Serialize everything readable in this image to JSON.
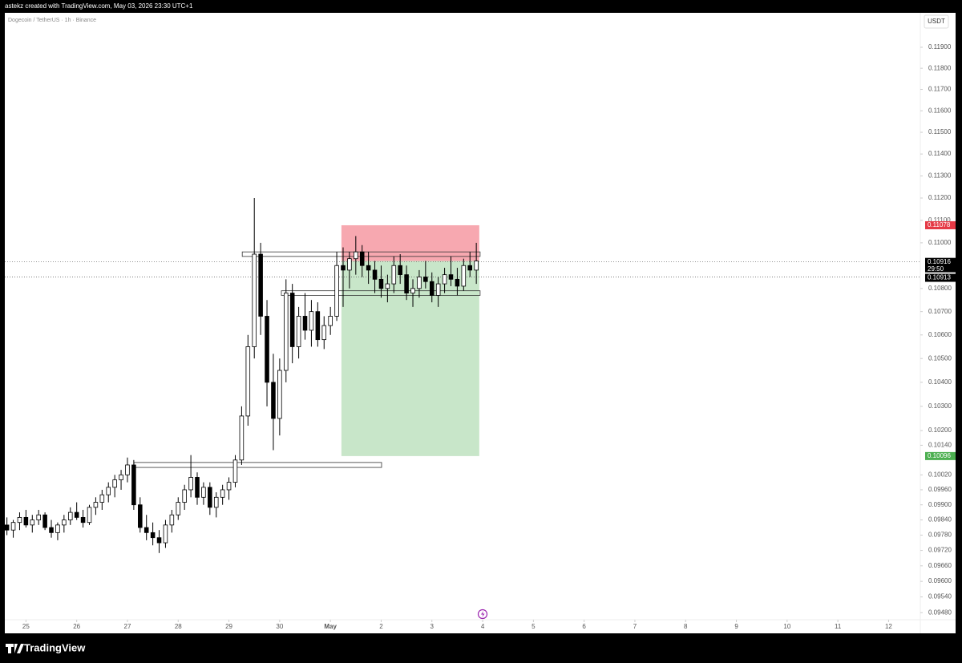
{
  "chart_data": {
    "type": "candlestick",
    "header": "astekz created with TradingView.com, May 03, 2026 23:30 UTC+1",
    "title": "Dogecoin / TetherUS · 1h · Binance",
    "currency": "USDT",
    "brand": "TradingView",
    "log_scale": true,
    "xlim": [
      -10,
      423
    ],
    "ylim": [
      0.09453,
      0.12066
    ],
    "xticks": [
      {
        "value": 0,
        "label": "25"
      },
      {
        "value": 24,
        "label": "26"
      },
      {
        "value": 48,
        "label": "27"
      },
      {
        "value": 72,
        "label": "28"
      },
      {
        "value": 96,
        "label": "29"
      },
      {
        "value": 120,
        "label": "30"
      },
      {
        "value": 144,
        "label": "May"
      },
      {
        "value": 168,
        "label": "2"
      },
      {
        "value": 192,
        "label": "3"
      },
      {
        "value": 216,
        "label": "4"
      },
      {
        "value": 240,
        "label": "5"
      },
      {
        "value": 264,
        "label": "6"
      },
      {
        "value": 288,
        "label": "7"
      },
      {
        "value": 312,
        "label": "8"
      },
      {
        "value": 336,
        "label": "9"
      },
      {
        "value": 360,
        "label": "10"
      },
      {
        "value": 384,
        "label": "11"
      },
      {
        "value": 408,
        "label": "12"
      }
    ],
    "yticks": [
      {
        "value": 0.119,
        "label": "0.11900"
      },
      {
        "value": 0.118,
        "label": "0.11800"
      },
      {
        "value": 0.117,
        "label": "0.11700"
      },
      {
        "value": 0.116,
        "label": "0.11600"
      },
      {
        "value": 0.115,
        "label": "0.11500"
      },
      {
        "value": 0.114,
        "label": "0.11400"
      },
      {
        "value": 0.113,
        "label": "0.11300"
      },
      {
        "value": 0.112,
        "label": "0.11200"
      },
      {
        "value": 0.111,
        "label": "0.11100"
      },
      {
        "value": 0.11,
        "label": "0.11000"
      },
      {
        "value": 0.108,
        "label": "0.10800"
      },
      {
        "value": 0.107,
        "label": "0.10700"
      },
      {
        "value": 0.106,
        "label": "0.10600"
      },
      {
        "value": 0.105,
        "label": "0.10500"
      },
      {
        "value": 0.104,
        "label": "0.10400"
      },
      {
        "value": 0.103,
        "label": "0.10300"
      },
      {
        "value": 0.102,
        "label": "0.10200"
      },
      {
        "value": 0.1014,
        "label": "0.10140"
      },
      {
        "value": 0.1002,
        "label": "0.10020"
      },
      {
        "value": 0.0996,
        "label": "0.09960"
      },
      {
        "value": 0.099,
        "label": "0.09900"
      },
      {
        "value": 0.0984,
        "label": "0.09840"
      },
      {
        "value": 0.0978,
        "label": "0.09780"
      },
      {
        "value": 0.0972,
        "label": "0.09720"
      },
      {
        "value": 0.0966,
        "label": "0.09660"
      },
      {
        "value": 0.096,
        "label": "0.09600"
      },
      {
        "value": 0.0954,
        "label": "0.09540"
      },
      {
        "value": 0.0948,
        "label": "0.09480"
      }
    ],
    "candles": [
      [
        -9,
        0.0982,
        0.0985,
        0.0978,
        0.098
      ],
      [
        -6,
        0.098,
        0.0984,
        0.0977,
        0.0983
      ],
      [
        -3,
        0.0983,
        0.0987,
        0.098,
        0.0985
      ],
      [
        0,
        0.0985,
        0.0988,
        0.0981,
        0.0982
      ],
      [
        3,
        0.0982,
        0.0986,
        0.0979,
        0.0984
      ],
      [
        6,
        0.0984,
        0.0988,
        0.0982,
        0.0986
      ],
      [
        9,
        0.0986,
        0.0987,
        0.098,
        0.0981
      ],
      [
        12,
        0.0981,
        0.0984,
        0.0977,
        0.0979
      ],
      [
        15,
        0.0979,
        0.0983,
        0.0976,
        0.0982
      ],
      [
        18,
        0.0982,
        0.0986,
        0.0979,
        0.0984
      ],
      [
        21,
        0.0984,
        0.0989,
        0.0982,
        0.0987
      ],
      [
        24,
        0.0987,
        0.0991,
        0.0984,
        0.0985
      ],
      [
        27,
        0.0985,
        0.0988,
        0.0981,
        0.0983
      ],
      [
        30,
        0.0983,
        0.099,
        0.0982,
        0.0989
      ],
      [
        33,
        0.0989,
        0.0993,
        0.0986,
        0.0991
      ],
      [
        36,
        0.0991,
        0.0996,
        0.0988,
        0.0994
      ],
      [
        39,
        0.0994,
        0.0999,
        0.0991,
        0.0997
      ],
      [
        42,
        0.0997,
        0.1002,
        0.0993,
        0.1
      ],
      [
        45,
        0.1,
        0.1004,
        0.0996,
        0.1002
      ],
      [
        48,
        0.1002,
        0.1009,
        0.0999,
        0.1006
      ],
      [
        51,
        0.1006,
        0.1008,
        0.0988,
        0.099
      ],
      [
        54,
        0.099,
        0.0993,
        0.0979,
        0.0981
      ],
      [
        57,
        0.0981,
        0.0986,
        0.0976,
        0.0979
      ],
      [
        60,
        0.0979,
        0.0983,
        0.0974,
        0.0977
      ],
      [
        63,
        0.0977,
        0.098,
        0.0971,
        0.0975
      ],
      [
        66,
        0.0975,
        0.0984,
        0.0973,
        0.0982
      ],
      [
        69,
        0.0982,
        0.0988,
        0.0979,
        0.0986
      ],
      [
        72,
        0.0986,
        0.0993,
        0.0984,
        0.0991
      ],
      [
        75,
        0.0991,
        0.0998,
        0.0988,
        0.0996
      ],
      [
        78,
        0.0996,
        0.101,
        0.0993,
        0.1001
      ],
      [
        81,
        0.1001,
        0.1003,
        0.099,
        0.0993
      ],
      [
        84,
        0.0993,
        0.0999,
        0.099,
        0.0997
      ],
      [
        87,
        0.0997,
        0.0999,
        0.0986,
        0.0989
      ],
      [
        90,
        0.0989,
        0.0995,
        0.0985,
        0.0993
      ],
      [
        93,
        0.0993,
        0.0998,
        0.099,
        0.0996
      ],
      [
        96,
        0.0996,
        0.1001,
        0.0992,
        0.0999
      ],
      [
        99,
        0.0999,
        0.101,
        0.0997,
        0.1008
      ],
      [
        102,
        0.1008,
        0.103,
        0.1006,
        0.1026
      ],
      [
        105,
        0.1026,
        0.106,
        0.1022,
        0.1055
      ],
      [
        108,
        0.1055,
        0.112,
        0.105,
        0.1095
      ],
      [
        111,
        0.1095,
        0.11,
        0.106,
        0.1068
      ],
      [
        114,
        0.1068,
        0.1075,
        0.103,
        0.104
      ],
      [
        117,
        0.104,
        0.1052,
        0.1012,
        0.1025
      ],
      [
        120,
        0.1025,
        0.105,
        0.1018,
        0.1045
      ],
      [
        123,
        0.1045,
        0.1084,
        0.104,
        0.1078
      ],
      [
        126,
        0.1078,
        0.1082,
        0.1048,
        0.1055
      ],
      [
        129,
        0.1055,
        0.1072,
        0.105,
        0.1068
      ],
      [
        132,
        0.1068,
        0.1078,
        0.1058,
        0.1062
      ],
      [
        135,
        0.1062,
        0.1075,
        0.1055,
        0.107
      ],
      [
        138,
        0.107,
        0.1074,
        0.1055,
        0.1058
      ],
      [
        141,
        0.1058,
        0.1068,
        0.1054,
        0.1064
      ],
      [
        144,
        0.1064,
        0.1072,
        0.106,
        0.1068
      ],
      [
        147,
        0.1068,
        0.1096,
        0.1066,
        0.109
      ],
      [
        150,
        0.109,
        0.1098,
        0.1072,
        0.1088
      ],
      [
        153,
        0.1088,
        0.1096,
        0.108,
        0.1093
      ],
      [
        156,
        0.1093,
        0.1103,
        0.1086,
        0.1096
      ],
      [
        159,
        0.1096,
        0.1099,
        0.1085,
        0.109
      ],
      [
        162,
        0.109,
        0.1096,
        0.1082,
        0.1088
      ],
      [
        165,
        0.1088,
        0.1092,
        0.1078,
        0.1084
      ],
      [
        168,
        0.1084,
        0.109,
        0.1076,
        0.108
      ],
      [
        171,
        0.108,
        0.1086,
        0.1074,
        0.1082
      ],
      [
        174,
        0.1082,
        0.1094,
        0.1078,
        0.109
      ],
      [
        177,
        0.109,
        0.1095,
        0.1082,
        0.1086
      ],
      [
        180,
        0.1086,
        0.109,
        0.1075,
        0.1078
      ],
      [
        183,
        0.1078,
        0.1084,
        0.1072,
        0.108
      ],
      [
        186,
        0.108,
        0.1088,
        0.1076,
        0.1085
      ],
      [
        189,
        0.1085,
        0.1092,
        0.108,
        0.1083
      ],
      [
        192,
        0.1083,
        0.1087,
        0.1074,
        0.1077
      ],
      [
        195,
        0.1077,
        0.1085,
        0.1072,
        0.1082
      ],
      [
        198,
        0.1082,
        0.1089,
        0.1078,
        0.1086
      ],
      [
        201,
        0.1086,
        0.1094,
        0.1081,
        0.1084
      ],
      [
        204,
        0.1084,
        0.1089,
        0.1077,
        0.1081
      ],
      [
        207,
        0.1081,
        0.1093,
        0.1079,
        0.109
      ],
      [
        210,
        0.109,
        0.1096,
        0.1085,
        0.1088
      ],
      [
        213,
        0.1088,
        0.11,
        0.1082,
        0.1092
      ]
    ],
    "zones": [
      [
        102.3,
        214.8,
        0.1096,
        0.1094
      ],
      [
        120.8,
        214.8,
        0.1079,
        0.1077
      ],
      [
        51.1,
        168.2,
        0.1007,
        0.1005
      ]
    ],
    "position": {
      "x_start": 149.2,
      "x_end": 214.4,
      "entry": 0.1092,
      "stop": 0.11078,
      "target": 0.10096,
      "stop_color": "#f7a8b0",
      "target_color": "#c8e6c9",
      "stop_label_color": "#e53945",
      "target_label_color": "#4caf50"
    },
    "last_price": 0.10916,
    "countdown": "29:50",
    "prev_price": 0.10913
  }
}
